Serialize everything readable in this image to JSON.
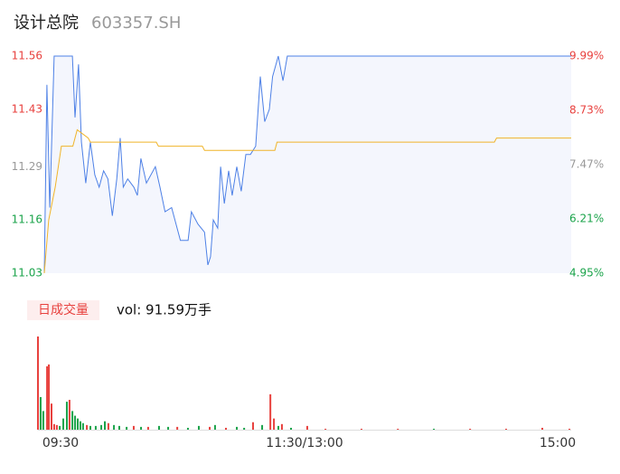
{
  "header": {
    "title": "设计总院",
    "code": "603357.SH"
  },
  "chart_data": [
    {
      "type": "line",
      "xlim": [
        0,
        240
      ],
      "ylim": [
        11.03,
        11.56
      ],
      "yticks": [
        11.56,
        11.43,
        11.29,
        11.16,
        11.03
      ],
      "ytick_colors": [
        "#e8413e",
        "#e8413e",
        "#999999",
        "#1aa34a",
        "#1aa34a"
      ],
      "y2lim": [
        4.95,
        9.99
      ],
      "y2ticks": [
        {
          "value": 9.99,
          "label": "9.99%"
        },
        {
          "value": 8.73,
          "label": "8.73%"
        },
        {
          "value": 7.47,
          "label": "7.47%"
        },
        {
          "value": 6.21,
          "label": "6.21%"
        },
        {
          "value": 4.95,
          "label": "4.95%"
        }
      ],
      "series": [
        {
          "color": "#4d80e6",
          "fill": "#f4f6fd",
          "x": [
            0,
            1.2,
            2.5,
            4.5,
            12.8,
            14,
            15.6,
            16.9,
            18.9,
            21,
            23,
            25,
            27,
            29,
            31,
            33,
            34.6,
            36,
            38,
            40.8,
            42.4,
            44,
            46.5,
            50.6,
            52.7,
            55,
            58,
            62,
            65.5,
            67,
            70,
            73,
            74.5,
            75.7,
            77,
            79,
            80.3,
            82,
            84,
            85.6,
            87.7,
            89.7,
            91.8,
            93.9,
            96.3,
            98.4,
            100.4,
            102.5,
            104,
            106.6,
            108.7,
            110.7,
            240
          ],
          "values": [
            11.03,
            11.49,
            11.19,
            11.56,
            11.56,
            11.41,
            11.54,
            11.35,
            11.25,
            11.35,
            11.27,
            11.24,
            11.28,
            11.26,
            11.17,
            11.26,
            11.36,
            11.24,
            11.26,
            11.24,
            11.22,
            11.31,
            11.25,
            11.29,
            11.24,
            11.18,
            11.19,
            11.11,
            11.11,
            11.18,
            11.15,
            11.13,
            11.05,
            11.07,
            11.16,
            11.14,
            11.29,
            11.2,
            11.28,
            11.22,
            11.29,
            11.23,
            11.32,
            11.32,
            11.34,
            11.51,
            11.4,
            11.43,
            11.51,
            11.56,
            11.5,
            11.56,
            11.56
          ]
        },
        {
          "color": "#f0b429",
          "x": [
            0,
            2,
            5,
            7.8,
            13,
            15,
            20,
            21,
            51,
            52,
            72,
            73,
            105,
            106,
            205,
            206,
            240
          ],
          "values": [
            11.03,
            11.16,
            11.24,
            11.34,
            11.34,
            11.38,
            11.36,
            11.35,
            11.35,
            11.34,
            11.34,
            11.33,
            11.33,
            11.35,
            11.35,
            11.36,
            11.36
          ]
        }
      ]
    },
    {
      "type": "volume",
      "label": "日成交量",
      "summary": "vol: 91.59万手",
      "xlim": [
        0,
        240
      ],
      "xticks": [
        {
          "value": 0,
          "label": "09:30"
        },
        {
          "value": 120,
          "label": "11:30/13:00"
        },
        {
          "value": 240,
          "label": "15:00"
        }
      ],
      "x": [
        0,
        1.2,
        2.4,
        4.1,
        4.9,
        6.1,
        7.3,
        8.5,
        9.8,
        11.4,
        13,
        14.2,
        15.5,
        16.7,
        17.9,
        19.1,
        20.3,
        22,
        23.6,
        26,
        28.5,
        30.1,
        31.7,
        34.2,
        36.6,
        39.9,
        43.1,
        46.4,
        49.6,
        54.5,
        58.6,
        62.7,
        67.5,
        72.4,
        77.3,
        79.7,
        84.6,
        89.5,
        92.8,
        96.8,
        100.9,
        104.6,
        106.2,
        108.2,
        109.8,
        113.9,
        121.2,
        129.4,
        145.6,
        162,
        178.2,
        194.5,
        210.7,
        227,
        239.2
      ],
      "values": [
        100,
        35,
        20,
        68,
        70,
        28,
        6,
        5,
        4,
        12,
        30,
        32,
        20,
        15,
        12,
        9,
        7,
        5,
        4,
        4,
        5,
        9,
        7,
        5,
        4,
        3,
        4,
        3,
        3,
        4,
        3,
        3,
        2,
        4,
        3,
        5,
        2,
        3,
        2,
        8,
        5,
        38,
        12,
        4,
        6,
        2,
        4,
        1,
        1,
        1,
        1,
        1,
        1,
        2,
        1
      ],
      "colors": [
        "#e8413e",
        "#1aa34a",
        "#1aa34a",
        "#e8413e",
        "#e8413e",
        "#e8413e",
        "#e8413e",
        "#e8413e",
        "#1aa34a",
        "#1aa34a",
        "#1aa34a",
        "#e8413e",
        "#1aa34a",
        "#1aa34a",
        "#1aa34a",
        "#1aa34a",
        "#1aa34a",
        "#e8413e",
        "#1aa34a",
        "#1aa34a",
        "#1aa34a",
        "#1aa34a",
        "#e8413e",
        "#1aa34a",
        "#1aa34a",
        "#1aa34a",
        "#e8413e",
        "#1aa34a",
        "#e8413e",
        "#1aa34a",
        "#1aa34a",
        "#e8413e",
        "#1aa34a",
        "#1aa34a",
        "#e8413e",
        "#1aa34a",
        "#e8413e",
        "#1aa34a",
        "#1aa34a",
        "#e8413e",
        "#1aa34a",
        "#e8413e",
        "#e8413e",
        "#1aa34a",
        "#e8413e",
        "#1aa34a",
        "#e8413e",
        "#e8413e",
        "#e8413e",
        "#e8413e",
        "#1aa34a",
        "#e8413e",
        "#e8413e",
        "#e8413e",
        "#e8413e"
      ]
    }
  ]
}
